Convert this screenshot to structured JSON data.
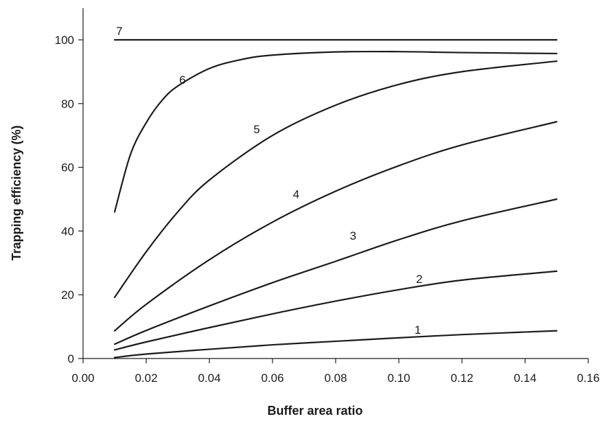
{
  "chart_data": {
    "type": "line",
    "title": "",
    "xlabel": "Buffer area ratio",
    "ylabel": "Trapping efficiency (%)",
    "xlim": [
      0.0,
      0.16
    ],
    "ylim": [
      0,
      100
    ],
    "x_ticks": [
      "0.00",
      "0.02",
      "0.04",
      "0.06",
      "0.08",
      "0.10",
      "0.12",
      "0.14",
      "0.16"
    ],
    "y_ticks": [
      "0",
      "20",
      "40",
      "60",
      "80",
      "100"
    ],
    "grid": false,
    "legend": "none",
    "line_color": "#1a1a1a",
    "series": [
      {
        "label": "1",
        "x": [
          0.01,
          0.02,
          0.04,
          0.06,
          0.08,
          0.1,
          0.12,
          0.15
        ],
        "y": [
          0.3,
          1.4,
          2.9,
          4.3,
          5.4,
          6.5,
          7.5,
          8.7
        ]
      },
      {
        "label": "2",
        "x": [
          0.01,
          0.02,
          0.04,
          0.06,
          0.08,
          0.1,
          0.12,
          0.15
        ],
        "y": [
          2.7,
          5.2,
          9.7,
          14.0,
          18.0,
          21.6,
          24.6,
          27.4
        ]
      },
      {
        "label": "3",
        "x": [
          0.01,
          0.02,
          0.04,
          0.06,
          0.08,
          0.1,
          0.12,
          0.15
        ],
        "y": [
          4.5,
          8.8,
          16.5,
          23.8,
          30.5,
          37.3,
          43.2,
          50.0
        ]
      },
      {
        "label": "4",
        "x": [
          0.01,
          0.02,
          0.04,
          0.06,
          0.08,
          0.1,
          0.12,
          0.15
        ],
        "y": [
          8.7,
          17.0,
          31.0,
          42.8,
          52.5,
          60.5,
          67.0,
          74.3
        ]
      },
      {
        "label": "5",
        "x": [
          0.01,
          0.02,
          0.03,
          0.04,
          0.06,
          0.08,
          0.1,
          0.12,
          0.15
        ],
        "y": [
          19.2,
          33.5,
          46.0,
          56.0,
          70.0,
          79.5,
          86.0,
          90.0,
          93.3
        ]
      },
      {
        "label": "6",
        "x": [
          0.01,
          0.015,
          0.02,
          0.025,
          0.03,
          0.04,
          0.05,
          0.06,
          0.08,
          0.1,
          0.12,
          0.15
        ],
        "y": [
          46.0,
          64.0,
          74.0,
          81.0,
          85.5,
          91.0,
          93.8,
          95.2,
          96.2,
          96.3,
          96.0,
          95.7
        ]
      },
      {
        "label": "7",
        "x": [
          0.01,
          0.15
        ],
        "y": [
          100.0,
          100.0
        ]
      }
    ],
    "curve_labels": [
      {
        "text": "1",
        "x": 0.106,
        "y": 9.0
      },
      {
        "text": "2",
        "x": 0.1065,
        "y": 25.0
      },
      {
        "text": "3",
        "x": 0.0855,
        "y": 38.6
      },
      {
        "text": "4",
        "x": 0.0675,
        "y": 51.6
      },
      {
        "text": "5",
        "x": 0.055,
        "y": 72.0
      },
      {
        "text": "6",
        "x": 0.0315,
        "y": 87.5
      },
      {
        "text": "7",
        "x": 0.0115,
        "y": 102.8
      }
    ]
  }
}
